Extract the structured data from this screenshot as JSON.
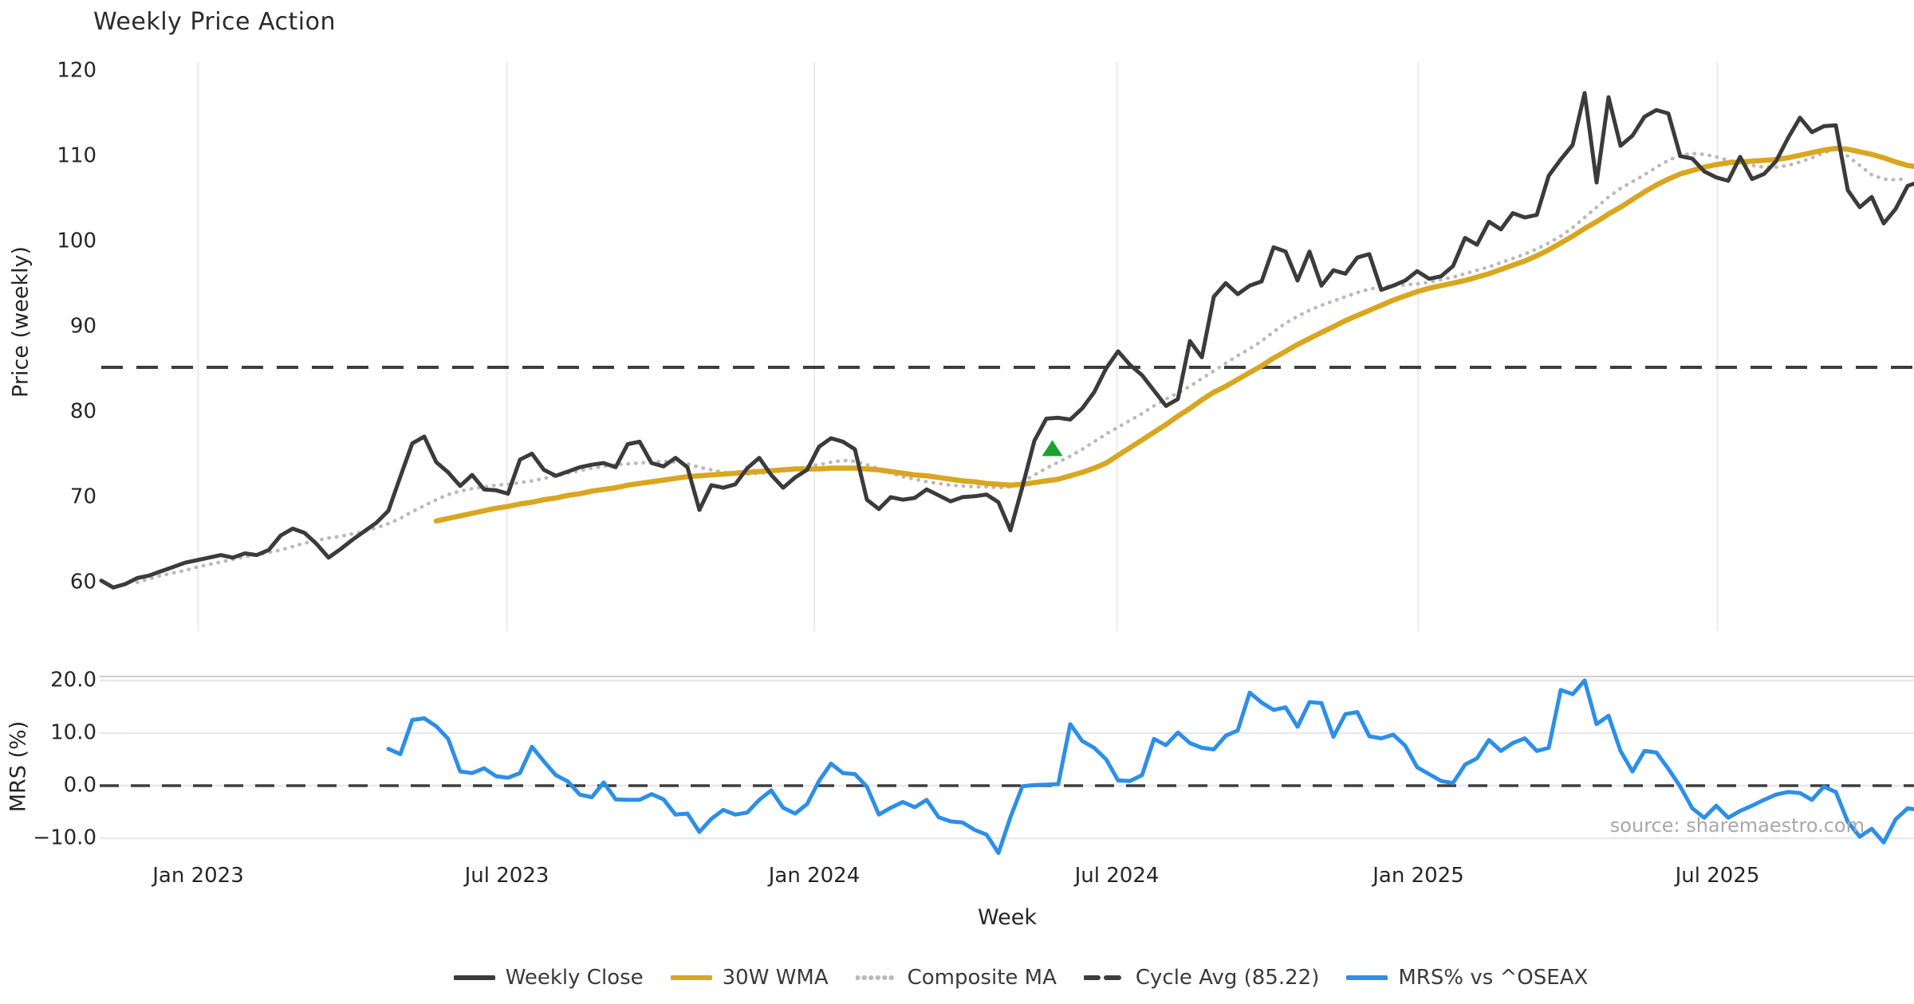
{
  "title": "Weekly Price Action",
  "xlabel": "Week",
  "source_note": "source: sharemaestro.com",
  "colors": {
    "close": "#3b3b3b",
    "wma": "#D9A61F",
    "composite": "#bababa",
    "cycle": "#3d3d3d",
    "mrs": "#2C8FE8",
    "signal": "#1AA42D",
    "grid_vertical": "#ebebeb",
    "grid_horizontal": "#e8e8f0",
    "panel_border": "#cfcfd6"
  },
  "chart_data": {
    "type": "line",
    "title": "Weekly Price Action",
    "x_axis": {
      "label": "Week",
      "unit": "week_index",
      "tick_labels": [
        "Jan 2023",
        "Jul 2023",
        "Jan 2024",
        "Jul 2024",
        "Jan 2025",
        "Jul 2025"
      ],
      "tick_weeks": [
        8.1,
        33.9,
        59.6,
        84.9,
        110.1,
        135.1
      ],
      "grid": true
    },
    "panels": [
      {
        "name": "price",
        "ylabel": "Price (weekly)",
        "ylim": [
          54.0,
          121.5
        ],
        "yticks": [
          {
            "label": "120",
            "v": 120
          },
          {
            "label": "110",
            "v": 110
          },
          {
            "label": "100",
            "v": 100
          },
          {
            "label": "90",
            "v": 90
          },
          {
            "label": "80",
            "v": 80
          },
          {
            "label": "70",
            "v": 70
          },
          {
            "label": "60",
            "v": 60
          }
        ],
        "grid": "vertical-only",
        "hline": {
          "name": "cycle-average",
          "value": 85.22,
          "style": "dashed"
        },
        "marker": {
          "name": "buy-signal-triangle",
          "shape": "triangle-up",
          "week": 79.5,
          "value": 75.6
        },
        "series": [
          {
            "name": "Weekly Close",
            "style": "solid",
            "color_key": "close",
            "start_week": 0,
            "values": [
              60.2,
              59.4,
              59.8,
              60.5,
              60.8,
              61.3,
              61.8,
              62.3,
              62.6,
              62.9,
              63.2,
              62.9,
              63.4,
              63.2,
              63.8,
              65.5,
              66.3,
              65.8,
              64.5,
              62.9,
              63.9,
              65.0,
              66.0,
              67.0,
              68.4,
              72.4,
              76.3,
              77.1,
              74.1,
              72.9,
              71.3,
              72.6,
              70.9,
              70.8,
              70.4,
              74.4,
              75.1,
              73.2,
              72.5,
              73.0,
              73.5,
              73.8,
              74.0,
              73.5,
              76.2,
              76.5,
              74.0,
              73.6,
              74.6,
              73.5,
              68.5,
              71.4,
              71.1,
              71.5,
              73.4,
              74.6,
              72.6,
              71.1,
              72.3,
              73.2,
              75.9,
              76.9,
              76.5,
              75.6,
              69.7,
              68.6,
              70.0,
              69.7,
              69.9,
              70.9,
              70.2,
              69.5,
              70.0,
              70.1,
              70.3,
              69.4,
              66.1,
              71.2,
              76.6,
              79.2,
              79.3,
              79.1,
              80.4,
              82.3,
              85.1,
              87.1,
              85.5,
              84.3,
              82.5,
              80.7,
              81.5,
              88.3,
              86.4,
              93.5,
              95.1,
              93.8,
              94.8,
              95.3,
              99.3,
              98.8,
              95.4,
              98.8,
              94.8,
              96.6,
              96.2,
              98.1,
              98.5,
              94.3,
              94.8,
              95.4,
              96.5,
              95.6,
              95.9,
              97.1,
              100.4,
              99.6,
              102.3,
              101.4,
              103.3,
              102.8,
              103.1,
              107.7,
              109.6,
              111.3,
              117.4,
              106.9,
              116.9,
              111.2,
              112.4,
              114.6,
              115.4,
              115.0,
              110.0,
              109.7,
              108.2,
              107.5,
              107.1,
              109.9,
              107.3,
              107.9,
              109.4,
              112.1,
              114.5,
              112.8,
              113.5,
              113.6,
              106.0,
              104.0,
              105.2,
              102.1,
              103.8,
              106.5,
              107.0
            ]
          },
          {
            "name": "30W WMA",
            "style": "solid",
            "color_key": "wma",
            "start_week": 28,
            "values": [
              67.2,
              67.5,
              67.8,
              68.1,
              68.4,
              68.7,
              68.9,
              69.2,
              69.4,
              69.7,
              69.9,
              70.2,
              70.4,
              70.7,
              70.9,
              71.1,
              71.4,
              71.6,
              71.8,
              72.0,
              72.2,
              72.4,
              72.5,
              72.6,
              72.7,
              72.8,
              72.9,
              73.0,
              73.1,
              73.2,
              73.3,
              73.3,
              73.3,
              73.4,
              73.4,
              73.4,
              73.3,
              73.2,
              73.0,
              72.8,
              72.6,
              72.5,
              72.3,
              72.1,
              71.9,
              71.8,
              71.6,
              71.5,
              71.4,
              71.5,
              71.7,
              71.9,
              72.1,
              72.5,
              72.9,
              73.4,
              74.0,
              74.9,
              75.8,
              76.7,
              77.6,
              78.5,
              79.5,
              80.4,
              81.4,
              82.3,
              83.0,
              83.8,
              84.6,
              85.4,
              86.3,
              87.1,
              87.9,
              88.6,
              89.3,
              90.0,
              90.7,
              91.3,
              91.9,
              92.5,
              93.1,
              93.6,
              94.1,
              94.5,
              94.8,
              95.1,
              95.4,
              95.8,
              96.2,
              96.7,
              97.2,
              97.7,
              98.3,
              99.0,
              99.8,
              100.6,
              101.5,
              102.3,
              103.2,
              104.0,
              104.9,
              105.8,
              106.6,
              107.3,
              107.9,
              108.3,
              108.7,
              109.0,
              109.2,
              109.3,
              109.4,
              109.5,
              109.6,
              109.8,
              110.1,
              110.4,
              110.7,
              110.9,
              110.8,
              110.5,
              110.2,
              109.8,
              109.3,
              108.9,
              108.7
            ]
          },
          {
            "name": "Composite MA",
            "style": "dotted",
            "color_key": "composite",
            "start_week": 3,
            "values": [
              60.0,
              60.4,
              60.8,
              61.1,
              61.4,
              61.8,
              62.1,
              62.4,
              62.7,
              63.0,
              63.2,
              63.5,
              63.8,
              64.2,
              64.6,
              64.9,
              65.2,
              65.4,
              65.7,
              66.0,
              66.4,
              66.9,
              67.5,
              68.3,
              69.0,
              69.7,
              70.3,
              70.7,
              71.0,
              71.2,
              71.4,
              71.5,
              71.7,
              71.9,
              72.2,
              72.5,
              72.8,
              73.1,
              73.4,
              73.6,
              73.8,
              73.9,
              74.0,
              74.1,
              74.2,
              74.1,
              73.9,
              73.5,
              73.2,
              72.9,
              72.7,
              72.7,
              72.8,
              72.9,
              73.1,
              73.3,
              73.6,
              73.8,
              74.1,
              74.3,
              74.2,
              73.8,
              73.3,
              72.8,
              72.4,
              72.1,
              71.8,
              71.6,
              71.4,
              71.3,
              71.2,
              71.2,
              71.1,
              71.2,
              71.8,
              72.6,
              73.4,
              74.1,
              74.8,
              75.6,
              76.5,
              77.4,
              78.2,
              79.0,
              79.8,
              80.7,
              81.5,
              82.2,
              83.0,
              83.9,
              84.8,
              85.7,
              86.6,
              87.4,
              88.3,
              89.4,
              90.4,
              91.2,
              91.9,
              92.5,
              93.0,
              93.5,
              94.0,
              94.4,
              94.6,
              94.8,
              94.9,
              95.0,
              95.2,
              95.5,
              95.8,
              96.2,
              96.6,
              97.0,
              97.5,
              98.0,
              98.5,
              99.1,
              99.8,
              100.6,
              101.6,
              102.8,
              104.0,
              105.2,
              106.2,
              107.0,
              107.8,
              108.7,
              109.5,
              110.1,
              110.3,
              110.2,
              109.9,
              109.5,
              109.2,
              108.9,
              108.7,
              108.7,
              108.9,
              109.3,
              109.8,
              110.4,
              110.8,
              110.0,
              108.9,
              107.8,
              107.3,
              107.2,
              107.4
            ]
          }
        ]
      },
      {
        "name": "mrs",
        "ylabel": "MRS (%)",
        "ylim": [
          -14.0,
          20.8
        ],
        "yticks": [
          {
            "label": "20.0",
            "v": 20
          },
          {
            "label": "10.0",
            "v": 10
          },
          {
            "label": "0.0",
            "v": 0
          },
          {
            "label": "−10.0",
            "v": -10
          }
        ],
        "grid": "horizontal-only",
        "hline": {
          "name": "zero-line",
          "value": 0,
          "style": "dashed"
        },
        "series": [
          {
            "name": "MRS% vs ^OSEAX",
            "style": "solid",
            "color_key": "mrs",
            "start_week": 24,
            "values": [
              7.0,
              6.0,
              12.5,
              12.8,
              11.3,
              8.9,
              2.7,
              2.4,
              3.3,
              1.8,
              1.5,
              2.4,
              7.4,
              4.6,
              2.0,
              0.8,
              -1.7,
              -2.2,
              0.6,
              -2.6,
              -2.7,
              -2.7,
              -1.6,
              -2.6,
              -5.5,
              -5.3,
              -8.8,
              -6.3,
              -4.6,
              -5.5,
              -5.1,
              -2.7,
              -0.9,
              -4.2,
              -5.3,
              -3.5,
              0.9,
              4.2,
              2.4,
              2.2,
              -0.2,
              -5.5,
              -4.2,
              -3.1,
              -4.1,
              -2.7,
              -6.0,
              -6.8,
              -7.0,
              -8.4,
              -9.3,
              -12.8,
              -6.0,
              -0.1,
              0.1,
              0.2,
              0.3,
              11.7,
              8.5,
              7.2,
              5.0,
              1.0,
              0.9,
              2.0,
              8.9,
              7.7,
              10.1,
              8.1,
              7.2,
              6.9,
              9.5,
              10.5,
              17.7,
              15.8,
              14.4,
              14.9,
              11.2,
              15.9,
              15.7,
              9.3,
              13.6,
              14.0,
              9.4,
              9.0,
              9.7,
              7.6,
              3.5,
              2.2,
              0.9,
              0.5,
              4.0,
              5.2,
              8.7,
              6.6,
              8.1,
              9.0,
              6.6,
              7.2,
              18.2,
              17.4,
              20.0,
              11.7,
              13.3,
              6.6,
              2.7,
              6.6,
              6.3,
              3.2,
              -0.2,
              -4.3,
              -6.1,
              -3.8,
              -6.1,
              -4.8,
              -3.8,
              -2.7,
              -1.7,
              -1.2,
              -1.4,
              -2.7,
              -0.2,
              -1.2,
              -6.9,
              -9.7,
              -8.2,
              -10.8,
              -6.4,
              -4.3,
              -4.6
            ]
          }
        ]
      }
    ],
    "legend": {
      "position": "bottom-center",
      "items": [
        {
          "label": "Weekly Close",
          "style": "solid",
          "color_key": "close"
        },
        {
          "label": "30W WMA",
          "style": "solid",
          "color_key": "wma"
        },
        {
          "label": "Composite MA",
          "style": "dotted",
          "color_key": "composite"
        },
        {
          "label": "Cycle Avg (85.22)",
          "style": "dashed",
          "color_key": "cycle"
        },
        {
          "label": "MRS% vs ^OSEAX",
          "style": "solid",
          "color_key": "mrs"
        }
      ]
    }
  }
}
